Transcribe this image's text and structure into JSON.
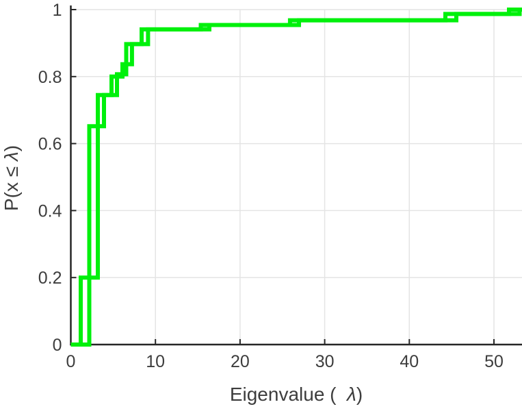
{
  "chart_data": {
    "type": "line",
    "subtype": "empirical-cdf-stairs",
    "title": "",
    "xlabel_parts": {
      "prefix": "Eigenvalue (  ",
      "symbol": "λ",
      "suffix": ")"
    },
    "ylabel_parts": {
      "prefix": "P(x ≤ ",
      "symbol": "λ",
      "suffix": ")"
    },
    "xlim": [
      0,
      53.3
    ],
    "ylim": [
      0,
      1
    ],
    "xticks": [
      0,
      10,
      20,
      30,
      40,
      50
    ],
    "xtick_labels": [
      "0",
      "10",
      "20",
      "30",
      "40",
      "50"
    ],
    "yticks": [
      0,
      0.2,
      0.4,
      0.6,
      0.8,
      1
    ],
    "ytick_labels": [
      "0",
      "0.2",
      "0.4",
      "0.6",
      "0.8",
      "1"
    ],
    "grid": true,
    "legend": "none",
    "line_color": "#00f00c",
    "axis_color": "#262626",
    "grid_color": "#e4e4e4",
    "label_color": "#3d3d3d",
    "series": [
      {
        "name": "ecdf-curve-1",
        "start": [
          0,
          0
        ],
        "steps": [
          [
            1.17,
            0.2
          ],
          [
            3.19,
            0.745
          ],
          [
            5.46,
            0.807
          ],
          [
            6.55,
            0.897
          ],
          [
            8.37,
            0.941
          ],
          [
            15.36,
            0.954
          ],
          [
            25.9,
            0.968
          ],
          [
            44.26,
            0.987
          ],
          [
            51.78,
            1.0
          ]
        ]
      },
      {
        "name": "ecdf-curve-2",
        "start": [
          0,
          0
        ],
        "steps": [
          [
            2.18,
            0.652
          ],
          [
            3.92,
            0.745
          ],
          [
            4.81,
            0.8
          ],
          [
            6.1,
            0.837
          ],
          [
            7.23,
            0.897
          ],
          [
            9.13,
            0.941
          ],
          [
            16.37,
            0.954
          ],
          [
            26.96,
            0.968
          ],
          [
            45.55,
            0.987
          ],
          [
            53.03,
            1.0
          ]
        ]
      }
    ]
  }
}
